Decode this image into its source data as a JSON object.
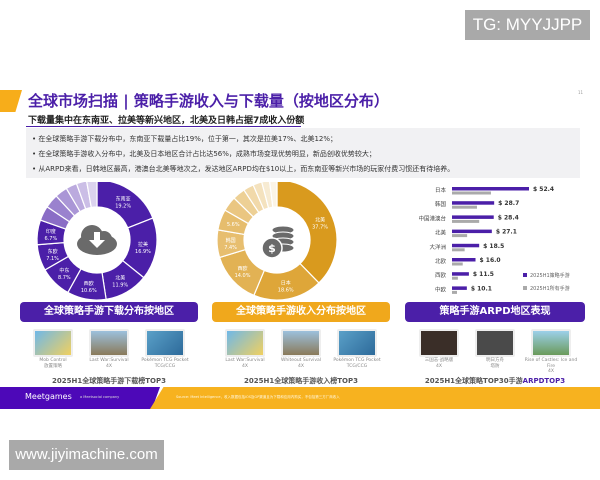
{
  "watermarks": {
    "tg": "TG: MYYJJPP",
    "site": "www.jiyimachine.com"
  },
  "header": {
    "title": "全球市场扫描 | 策略手游收入与下载量（按地区分布）",
    "page_number": "11",
    "subtitle": "下载量集中在东南亚、拉美等新兴地区，北美及日韩占据7成收入份额"
  },
  "bullets": [
    "在全球策略手游下载分布中，东南亚下载量占比19%，位于第一，其次是拉美17%、北美12%；",
    "在全球策略手游收入分布中，北美及日本地区合计占比达56%，成熟市场变现优势明显，新品创收优势较大；",
    "从ARPD来看，日韩地区最高，港澳台北美等地次之，发达地区ARPD均在$10以上，而东南亚等新兴市场的玩家付费习惯还有待培养。"
  ],
  "chart_data": [
    {
      "type": "pie",
      "title": "全球策略手游下载分布按地区",
      "icon": "cloud-download-icon",
      "color": "#4b1fa8",
      "labels": [
        "东南亚",
        "拉美",
        "北美",
        "西欧",
        "中东",
        "东欧",
        "印度",
        "",
        "",
        "",
        "",
        "",
        ""
      ],
      "values": [
        19.2,
        16.9,
        11.9,
        10.6,
        8.7,
        7.1,
        6.7,
        4,
        3.8,
        3.4,
        3,
        2.8,
        2.8
      ]
    },
    {
      "type": "pie",
      "title": "全球策略手游收入分布按地区",
      "icon": "coins-dollar-icon",
      "color": "#d99a1e",
      "labels": [
        "北美",
        "日本",
        "西欧",
        "韩国",
        "",
        "",
        "",
        "",
        "",
        "",
        ""
      ],
      "values": [
        37.7,
        18.6,
        14.0,
        7.4,
        5.6,
        4,
        3.4,
        2.8,
        2.4,
        2.1,
        2.0
      ]
    },
    {
      "type": "bar",
      "title": "策略手游ARPD地区表现",
      "orientation": "horizontal",
      "categories": [
        "日本",
        "韩国",
        "中国港澳台",
        "北美",
        "大洋洲",
        "北欧",
        "西欧",
        "中欧"
      ],
      "series": [
        {
          "name": "2025H1策略手游",
          "color": "#4b1fa8",
          "values": [
            52.4,
            28.7,
            28.4,
            27.1,
            18.5,
            16.0,
            11.5,
            10.1
          ],
          "labels": [
            "$ 52.4",
            "$ 28.7",
            "$ 28.4",
            "$ 27.1",
            "$ 18.5",
            "$ 16.0",
            "$ 11.5",
            "$ 10.1"
          ]
        },
        {
          "name": "2025H1所有手游",
          "color": "#aaaaaa",
          "values": [
            26.5,
            17,
            18.5,
            10.3,
            8.6,
            7.3,
            4,
            3.4
          ]
        }
      ],
      "legend": "right"
    }
  ],
  "panels": [
    {
      "banner": "全球策略手游下载分布按地区",
      "color": "#4b1fa8",
      "rank_title": "2025H1全球策略手游下载榜TOP3",
      "games": [
        {
          "name": "Mob Control",
          "sub": "放置策略"
        },
        {
          "name": "Last War:Survival",
          "sub": "4X"
        },
        {
          "name": "Pokémon TCG Pocket",
          "sub": "TCG/CCG"
        }
      ]
    },
    {
      "banner": "全球策略手游收入分布按地区",
      "color": "#f0a81c",
      "rank_title": "2025H1全球策略手游收入榜TOP3",
      "games": [
        {
          "name": "Last War:Survival",
          "sub": "4X"
        },
        {
          "name": "Whiteout Survival",
          "sub": "4X"
        },
        {
          "name": "Pokémon TCG Pocket",
          "sub": "TCG/CCG"
        }
      ]
    },
    {
      "banner": "策略手游ARPD地区表现",
      "color": "#4b1fa8",
      "rank_title": "2025H1全球策略TOP30手游",
      "rank_title_hl": "ARPDTOP3",
      "games": [
        {
          "name": "三国志·战略版",
          "sub": "4X"
        },
        {
          "name": "明日方舟",
          "sub": "塔防"
        },
        {
          "name": "Rise of Castles: Ice and Fire",
          "sub": "4X"
        }
      ]
    }
  ],
  "footer": {
    "logo": "Meetgames",
    "logo_sub": "a Meetsocial company",
    "source": "Source: Meet Intelligence，收入数据包括iOS及GP渠道且为下载和应用内购买，不包括第三方厂商收入"
  }
}
